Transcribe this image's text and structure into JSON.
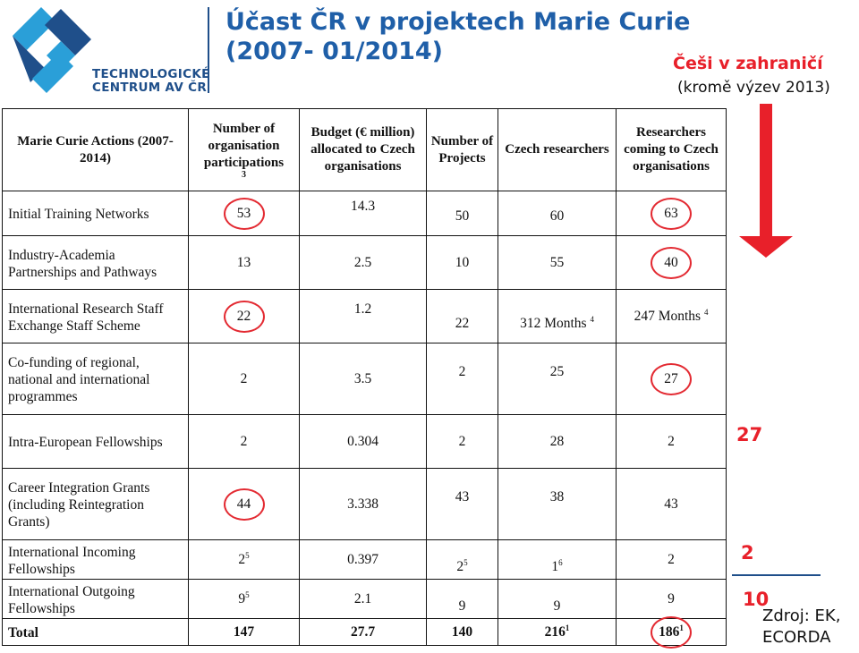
{
  "logo": {
    "line1": "TECHNOLOGICKÉ",
    "line2": "CENTRUM AV ČR",
    "colors": {
      "dark": "#1f4f8a",
      "light": "#2a9fd8"
    }
  },
  "title": {
    "line1": "Účast ČR v projektech Marie Curie",
    "line2": "(2007- 01/2014)"
  },
  "subtitle": {
    "red": "Češi v zahraničí",
    "black": "(kromě výzev 2013)"
  },
  "table": {
    "headers": [
      "Marie Curie Actions (2007-2014)",
      "Number of organisation participations",
      "Budget (€ million) allocated to Czech organisations",
      "Number of Projects",
      "Czech researchers",
      "Researchers coming to Czech organisations"
    ],
    "header_footnote": "3",
    "rows": [
      {
        "label": "Initial Training Networks",
        "orgs": "53",
        "budget": "14.3",
        "projects": "50",
        "czech": "60",
        "coming": "63"
      },
      {
        "label": "Industry-Academia Partnerships and Pathways",
        "orgs": "13",
        "budget": "2.5",
        "projects": "10",
        "czech": "55",
        "coming": "40"
      },
      {
        "label": "International Research Staff Exchange Staff Scheme",
        "orgs": "22",
        "budget": "1.2",
        "projects": "22",
        "czech": "312 Months",
        "czech_sup": "4",
        "coming": "247 Months",
        "coming_sup": "4"
      },
      {
        "label": "Co-funding of regional, national and international programmes",
        "orgs": "2",
        "budget": "3.5",
        "projects": "2",
        "czech": "25",
        "coming": "27"
      },
      {
        "label": "Intra-European Fellowships",
        "orgs": "2",
        "budget": "0.304",
        "projects": "2",
        "czech": "28",
        "coming": "2"
      },
      {
        "label": "Career Integration Grants (including Reintegration Grants)",
        "orgs": "44",
        "budget": "3.338",
        "projects": "43",
        "czech": "38",
        "coming": "43"
      },
      {
        "label": "International Incoming Fellowships",
        "orgs": "2",
        "orgs_sup": "5",
        "budget": "0.397",
        "projects": "2",
        "projects_sup": "5",
        "czech": "1",
        "czech_sup": "6",
        "coming": "2"
      },
      {
        "label": "International Outgoing Fellowships",
        "orgs": "9",
        "orgs_sup": "5",
        "budget": "2.1",
        "projects": "9",
        "czech": "9",
        "coming": "9"
      }
    ],
    "total": {
      "label": "Total",
      "orgs": "147",
      "budget": "27.7",
      "projects": "140",
      "czech": "216",
      "czech_sup": "1",
      "coming": "186",
      "coming_sup": "1"
    }
  },
  "highlight_color": "#e32a32",
  "side": {
    "value_27": "27",
    "value_2": "2",
    "value_10": "10",
    "source_line1": "Zdroj: EK,",
    "source_line2": "ECORDA"
  }
}
